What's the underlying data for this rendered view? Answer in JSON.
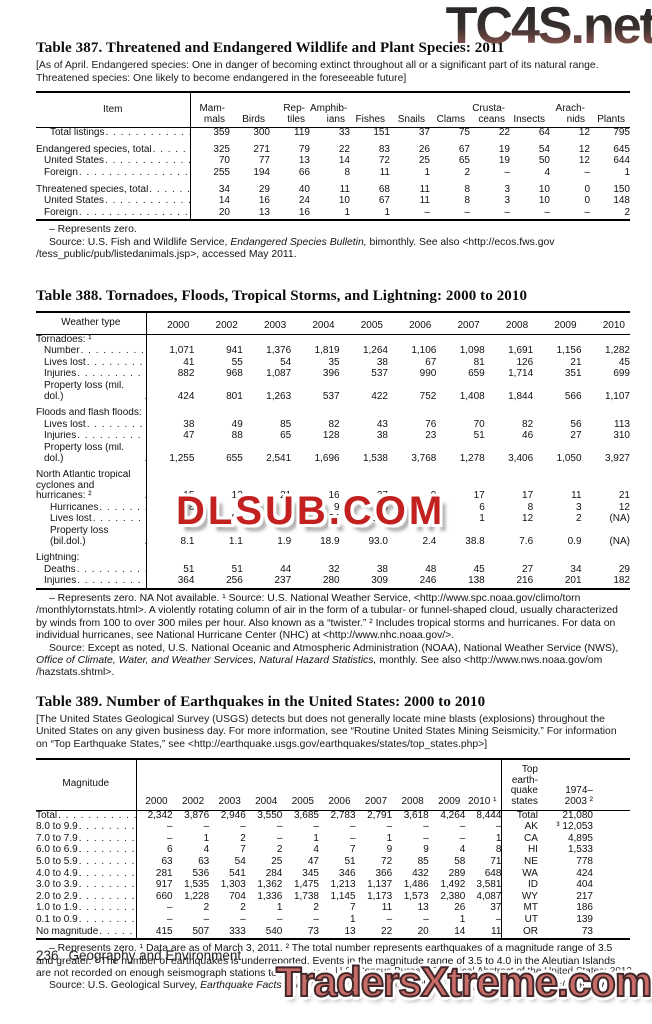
{
  "watermarks": {
    "top": "TC4S.net",
    "middle": "DLSUB.COM",
    "bottom": "TradersXtreme.com"
  },
  "footer": {
    "page_number": "236",
    "chapter": "Geography and Environment",
    "source_line": "U.S. Census Bureau, Statistical Abstract of the United States: 2012"
  },
  "tables": [
    {
      "id": "387",
      "title": "Table 387. Threatened and Endangered Wildlife and Plant Species: 2011",
      "bracket_note": "[As of April. Endangered species: One in danger of becoming extinct  throughout all or a significant part of its natural range. Threatened species: One likely to become endangered in the foreseeable future]",
      "stub_header": "Item",
      "columns": [
        "Mam-\nmals",
        "Birds",
        "Rep-\ntiles",
        "Amphib-\nians",
        "Fishes",
        "Snails",
        "Clams",
        "Crusta-\nceans",
        "Insects",
        "Arach-\nnids",
        "Plants"
      ],
      "rows": [
        {
          "label": "Total listings",
          "bold": true,
          "indent": 2,
          "cells": [
            "359",
            "300",
            "119",
            "33",
            "151",
            "37",
            "75",
            "22",
            "64",
            "12",
            "795"
          ]
        },
        {
          "label": "Endangered species, total",
          "bold": true,
          "gap": true,
          "cells": [
            "325",
            "271",
            "79",
            "22",
            "83",
            "26",
            "67",
            "19",
            "54",
            "12",
            "645"
          ]
        },
        {
          "label": "United States",
          "indent": 1,
          "cells": [
            "70",
            "77",
            "13",
            "14",
            "72",
            "25",
            "65",
            "19",
            "50",
            "12",
            "644"
          ]
        },
        {
          "label": "Foreign",
          "indent": 1,
          "cells": [
            "255",
            "194",
            "66",
            "8",
            "11",
            "1",
            "2",
            "–",
            "4",
            "–",
            "1"
          ]
        },
        {
          "label": "Threatened species, total",
          "bold": true,
          "gap": true,
          "cells": [
            "34",
            "29",
            "40",
            "11",
            "68",
            "11",
            "8",
            "3",
            "10",
            "0",
            "150"
          ]
        },
        {
          "label": "United States",
          "indent": 1,
          "cells": [
            "14",
            "16",
            "24",
            "10",
            "67",
            "11",
            "8",
            "3",
            "10",
            "0",
            "148"
          ]
        },
        {
          "label": "Foreign",
          "indent": 1,
          "cells": [
            "20",
            "13",
            "16",
            "1",
            "1",
            "–",
            "–",
            "–",
            "–",
            "–",
            "2"
          ]
        }
      ],
      "footnotes": [
        "– Represents zero.",
        "Source: U.S. Fish and Wildlife Service, *Endangered Species Bulletin,* bimonthly. See also <http://ecos.fws.gov /tess_public/pub/listedanimals.jsp>, accessed May 2011."
      ]
    },
    {
      "id": "388",
      "title": "Table 388. Tornadoes, Floods, Tropical Storms, and Lightning: 2000 to 2010",
      "bracket_note": "",
      "stub_header": "Weather type",
      "columns": [
        "2000",
        "2002",
        "2003",
        "2004",
        "2005",
        "2006",
        "2007",
        "2008",
        "2009",
        "2010"
      ],
      "rows": [
        {
          "label": "Tornadoes: ¹",
          "section": true
        },
        {
          "label": "Number",
          "indent": 1,
          "cells": [
            "1,071",
            "941",
            "1,376",
            "1,819",
            "1,264",
            "1,106",
            "1,098",
            "1,691",
            "1,156",
            "1,282"
          ]
        },
        {
          "label": "Lives lost",
          "indent": 1,
          "cells": [
            "41",
            "55",
            "54",
            "35",
            "38",
            "67",
            "81",
            "126",
            "21",
            "45"
          ]
        },
        {
          "label": "Injuries",
          "indent": 1,
          "cells": [
            "882",
            "968",
            "1,087",
            "396",
            "537",
            "990",
            "659",
            "1,714",
            "351",
            "699"
          ]
        },
        {
          "label": "Property loss (mil. dol.)",
          "indent": 1,
          "cells": [
            "424",
            "801",
            "1,263",
            "537",
            "422",
            "752",
            "1,408",
            "1,844",
            "566",
            "1,107"
          ]
        },
        {
          "label": "Floods and flash floods:",
          "section": true,
          "gap": true
        },
        {
          "label": "Lives lost",
          "indent": 1,
          "cells": [
            "38",
            "49",
            "85",
            "82",
            "43",
            "76",
            "70",
            "82",
            "56",
            "113"
          ]
        },
        {
          "label": "Injuries",
          "indent": 1,
          "cells": [
            "47",
            "88",
            "65",
            "128",
            "38",
            "23",
            "51",
            "46",
            "27",
            "310"
          ]
        },
        {
          "label": "Property loss (mil. dol.)",
          "indent": 1,
          "cells": [
            "1,255",
            "655",
            "2,541",
            "1,696",
            "1,538",
            "3,768",
            "1,278",
            "3,406",
            "1,050",
            "3,927"
          ]
        },
        {
          "label": "North Atlantic tropical\n cyclones and hurricanes: ²",
          "gap": true,
          "cells": [
            "15",
            "12",
            "21",
            "16",
            "27",
            "9",
            "17",
            "17",
            "11",
            "21"
          ]
        },
        {
          "label": "Hurricanes",
          "indent": 2,
          "cells": [
            "8",
            "4",
            "7",
            "9",
            "15",
            "5",
            "6",
            "8",
            "3",
            "12"
          ]
        },
        {
          "label": "Lives lost",
          "indent": 2,
          "cells": [
            "–",
            "51",
            "14",
            "34",
            "1,016",
            "–",
            "1",
            "12",
            "2",
            "(NA)"
          ]
        },
        {
          "label": "Property loss (bil.dol.)",
          "indent": 2,
          "cells": [
            "8.1",
            "1.1",
            "1.9",
            "18.9",
            "93.0",
            "2.4",
            "38.8",
            "7.6",
            "0.9",
            "(NA)"
          ]
        },
        {
          "label": "Lightning:",
          "section": true,
          "gap": true
        },
        {
          "label": "Deaths",
          "indent": 1,
          "cells": [
            "51",
            "51",
            "44",
            "32",
            "38",
            "48",
            "45",
            "27",
            "34",
            "29"
          ]
        },
        {
          "label": "Injuries",
          "indent": 1,
          "cells": [
            "364",
            "256",
            "237",
            "280",
            "309",
            "246",
            "138",
            "216",
            "201",
            "182"
          ]
        }
      ],
      "footnotes": [
        "– Represents zero. NA Not available. ¹ Source: U.S. National Weather Service, <http://www.spc.noaa.gov/climo/torn /monthlytornstats.html>. A violently rotating column of air in the form of a tubular- or funnel-shaped cloud, usually characterized by winds from 100 to over 300 miles per hour. Also known as a “twister.” ² Includes tropical storms and hurricanes. For data on individual hurricanes, see National Hurricane Center (NHC) at <http://www.nhc.noaa.gov/>.",
        "Source: Except as noted, U.S. National Oceanic and Atmospheric Administration (NOAA), National Weather Service (NWS), *Office of Climate, Water, and Weather Services, Natural Hazard Statistics,* monthly. See also <http://www.nws.noaa.gov/om /hazstats.shtml>."
      ]
    },
    {
      "id": "389",
      "title": "Table 389. Number of Earthquakes in the United States: 2000 to 2010",
      "bracket_note": "[The United States Geological Survey (USGS) detects but does not generally locate mine blasts (explosions) throughout the United States on any given business day. For more information, see “Routine United States Mining Seismicity.” For information on “Top Earthquake States,” see <http://earthquake.usgs.gov/earthquakes/states/top_states.php>]",
      "stub_header": "Magnitude",
      "columns": [
        "2000",
        "2002",
        "2003",
        "2004",
        "2005",
        "2006",
        "2007",
        "2008",
        "2009",
        "2010 ¹"
      ],
      "extra_columns": [
        "Top earth-\nquake\nstates",
        "1974–\n2003 ²"
      ],
      "rows": [
        {
          "label": "Total",
          "bold": true,
          "cells": [
            "2,342",
            "3,876",
            "2,946",
            "3,550",
            "3,685",
            "2,783",
            "2,791",
            "3,618",
            "4,264",
            "8,444"
          ],
          "extra": [
            "Total",
            "21,080"
          ]
        },
        {
          "label": "8.0 to 9.9",
          "cells": [
            "–",
            "–",
            "–",
            "–",
            "–",
            "–",
            "–",
            "–",
            "–",
            "–"
          ],
          "extra": [
            "AK",
            "³ 12,053"
          ]
        },
        {
          "label": "7.0 to 7.9",
          "cells": [
            "–",
            "1",
            "2",
            "–",
            "1",
            "–",
            "1",
            "–",
            "–",
            "1"
          ],
          "extra": [
            "CA",
            "4,895"
          ]
        },
        {
          "label": "6.0 to 6.9",
          "cells": [
            "6",
            "4",
            "7",
            "2",
            "4",
            "7",
            "9",
            "9",
            "4",
            "8"
          ],
          "extra": [
            "HI",
            "1,533"
          ]
        },
        {
          "label": "5.0 to 5.9",
          "cells": [
            "63",
            "63",
            "54",
            "25",
            "47",
            "51",
            "72",
            "85",
            "58",
            "71"
          ],
          "extra": [
            "NE",
            "778"
          ]
        },
        {
          "label": "4.0 to 4.9",
          "cells": [
            "281",
            "536",
            "541",
            "284",
            "345",
            "346",
            "366",
            "432",
            "289",
            "648"
          ],
          "extra": [
            "WA",
            "424"
          ]
        },
        {
          "label": "3.0 to 3.9",
          "cells": [
            "917",
            "1,535",
            "1,303",
            "1,362",
            "1,475",
            "1,213",
            "1,137",
            "1,486",
            "1,492",
            "3,581"
          ],
          "extra": [
            "ID",
            "404"
          ]
        },
        {
          "label": "2.0 to 2.9",
          "cells": [
            "660",
            "1,228",
            "704",
            "1,336",
            "1,738",
            "1,145",
            "1,173",
            "1,573",
            "2,380",
            "4,087"
          ],
          "extra": [
            "WY",
            "217"
          ]
        },
        {
          "label": "1.0 to 1.9",
          "cells": [
            "–",
            "2",
            "2",
            "1",
            "2",
            "7",
            "11",
            "13",
            "26",
            "37"
          ],
          "extra": [
            "MT",
            "186"
          ]
        },
        {
          "label": "0.1 to 0.9",
          "cells": [
            "–",
            "–",
            "–",
            "–",
            "–",
            "1",
            "–",
            "–",
            "1",
            "–"
          ],
          "extra": [
            "UT",
            "139"
          ]
        },
        {
          "label": "No magnitude",
          "cells": [
            "415",
            "507",
            "333",
            "540",
            "73",
            "13",
            "22",
            "20",
            "14",
            "11"
          ],
          "extra": [
            "OR",
            "73"
          ]
        }
      ],
      "footnotes": [
        "– Represents zero. ¹ Data are as of March 3, 2011. ² The total number represents earthquakes of a magnitude range of 3.5 and greater. ³ The number of earthquakes is underreported. Events in the magnitude range of 3.5 to 4.0 in the Aleutian Islands are not recorded on enough seismograph stations to be located.",
        "Source: U.S. Geological Survey, *Earthquake Facts and Statistics.* See <http://earthquake.usgs.gov/earthquakes/eqarchives>."
      ]
    }
  ]
}
